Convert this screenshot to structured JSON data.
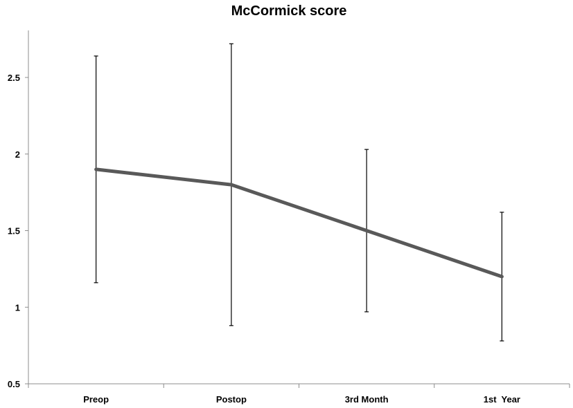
{
  "chart_data": {
    "type": "line",
    "title": "McCormick score",
    "xlabel": "",
    "ylabel": "",
    "categories": [
      "Preop",
      "Postop",
      "3rd Month",
      "1st  Year"
    ],
    "series": [
      {
        "values": [
          1.9,
          1.8,
          1.5,
          1.2
        ],
        "err_low": [
          1.16,
          0.88,
          0.97,
          0.78
        ],
        "err_high": [
          2.64,
          2.72,
          2.03,
          1.62
        ],
        "color": "#595959"
      }
    ],
    "ylim": [
      0.5,
      2.8
    ],
    "yticks": [
      0.5,
      1,
      1.5,
      2,
      2.5
    ],
    "ytick_labels": [
      "0.5",
      "1",
      "1.5",
      "2",
      "2.5"
    ],
    "grid": false,
    "legend": "none"
  }
}
